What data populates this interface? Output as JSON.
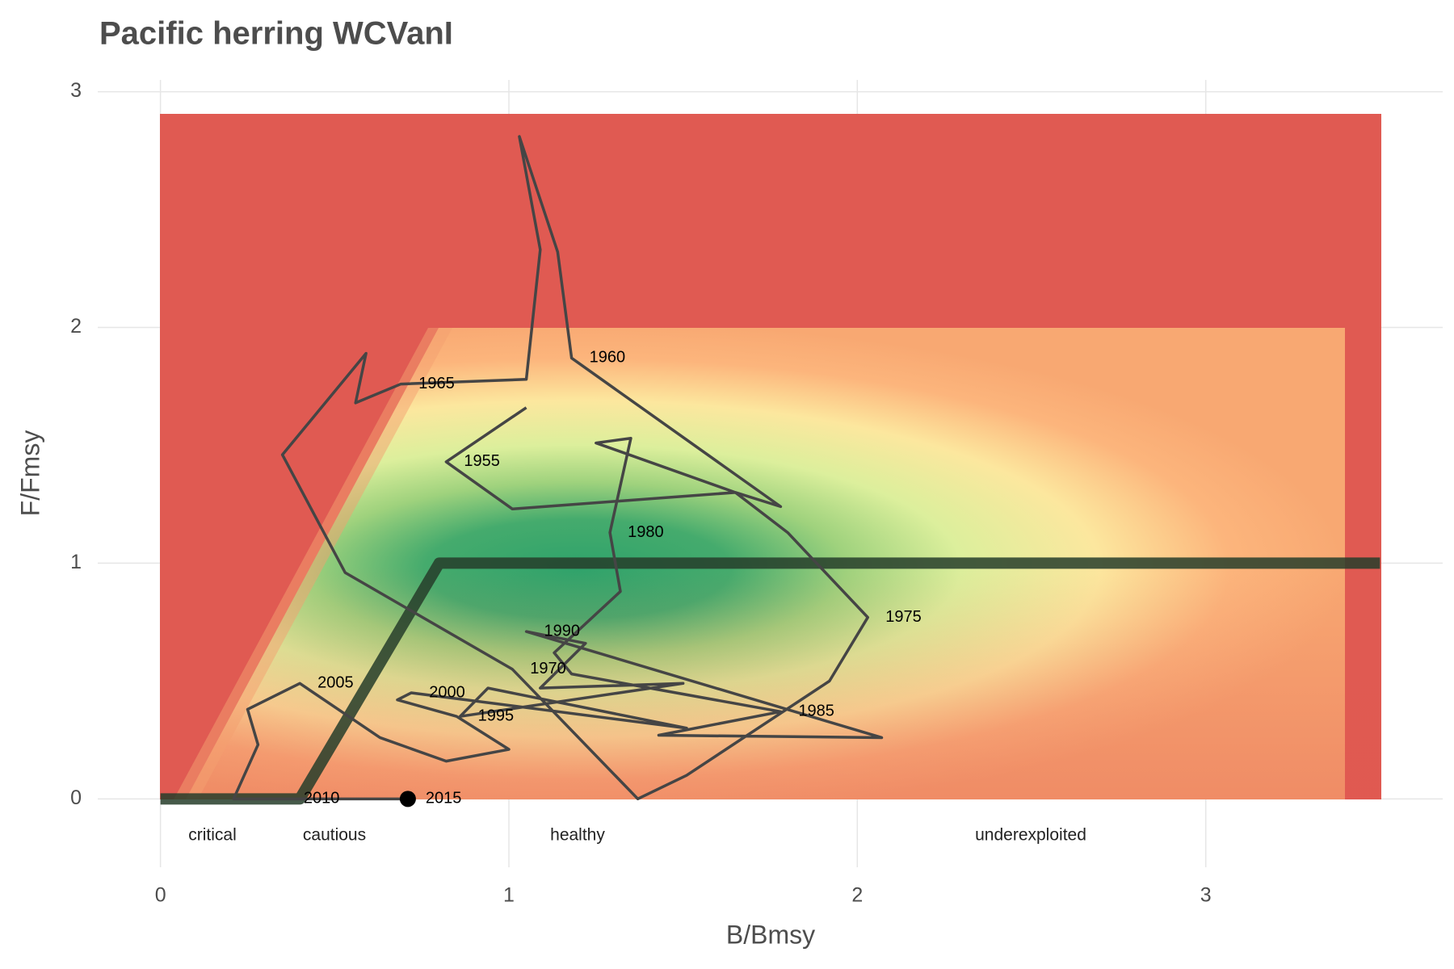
{
  "chart_data": {
    "type": "kobe",
    "title": "Pacific herring WCVanI",
    "xlabel": "B/Bmsy",
    "ylabel": "F/Fmsy",
    "xlim": [
      -0.18,
      3.68
    ],
    "ylim": [
      -0.29,
      3.05
    ],
    "xticks": [
      0,
      1,
      2,
      3
    ],
    "yticks": [
      0,
      1,
      2,
      3
    ],
    "grid": true,
    "zones": [
      "critical",
      "cautious",
      "healthy",
      "underexploited"
    ],
    "control_rule": {
      "x": [
        0,
        0.4,
        0.8,
        3.5
      ],
      "y": [
        0,
        0,
        1,
        1
      ],
      "color": "#263d2a"
    },
    "trajectory": {
      "color": "#454545",
      "x": [
        1.05,
        0.82,
        1.01,
        1.65,
        1.78,
        1.18,
        1.14,
        1.03,
        1.09,
        1.05,
        0.69,
        0.56,
        0.59,
        0.35,
        0.53,
        1.01,
        1.37,
        1.51,
        1.92,
        2.03,
        1.8,
        1.65,
        1.25,
        1.35,
        1.29,
        1.32,
        1.13,
        1.18,
        1.78,
        1.43,
        2.07,
        1.05,
        1.22,
        1.09,
        1.5,
        0.86,
        0.94,
        1.51,
        0.72,
        0.68,
        0.85,
        1.0,
        0.82,
        0.63,
        0.4,
        0.25,
        0.28,
        0.21,
        0.36,
        0.71
      ],
      "y": [
        1.66,
        1.43,
        1.23,
        1.3,
        1.24,
        1.87,
        2.32,
        2.81,
        2.33,
        1.78,
        1.76,
        1.68,
        1.89,
        1.46,
        0.96,
        0.55,
        0.0,
        0.1,
        0.5,
        0.77,
        1.13,
        1.3,
        1.51,
        1.53,
        1.13,
        0.88,
        0.62,
        0.53,
        0.37,
        0.27,
        0.26,
        0.71,
        0.66,
        0.47,
        0.49,
        0.35,
        0.47,
        0.3,
        0.45,
        0.42,
        0.35,
        0.21,
        0.16,
        0.26,
        0.49,
        0.38,
        0.23,
        0.0,
        0.0,
        0.0
      ],
      "labels": [
        null,
        1955,
        null,
        null,
        null,
        1960,
        null,
        null,
        null,
        null,
        1965,
        null,
        null,
        null,
        null,
        1970,
        null,
        null,
        null,
        1975,
        null,
        null,
        null,
        null,
        1980,
        null,
        null,
        null,
        1985,
        null,
        null,
        1990,
        null,
        null,
        null,
        1995,
        null,
        null,
        2000,
        null,
        null,
        null,
        null,
        null,
        2005,
        null,
        null,
        null,
        2010,
        2015
      ]
    }
  }
}
